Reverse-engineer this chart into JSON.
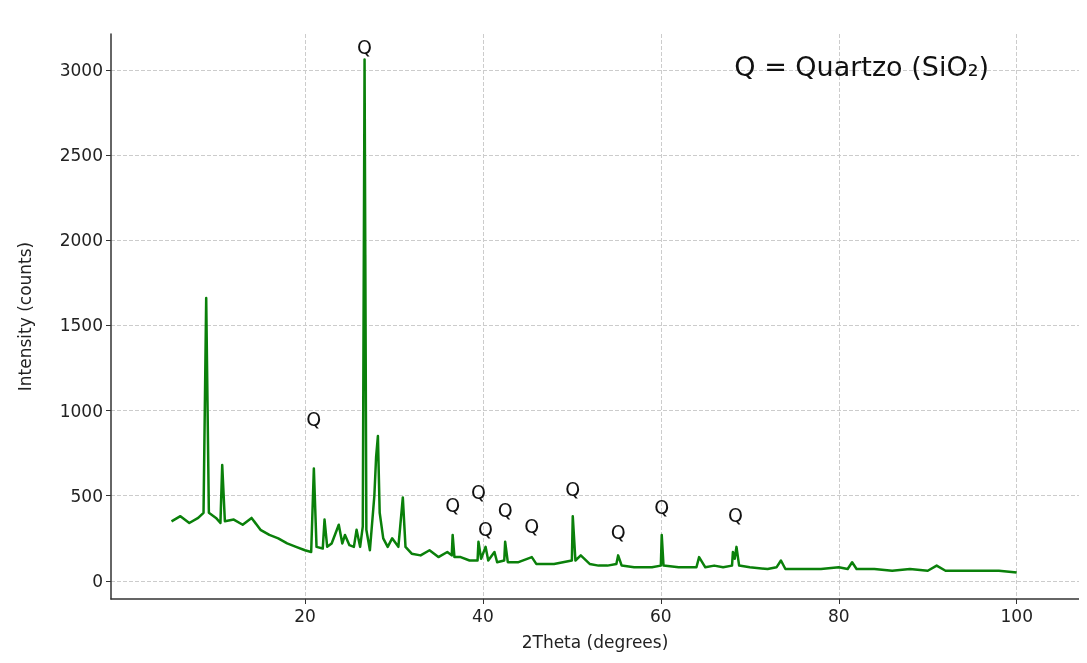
{
  "chart_data": {
    "type": "line",
    "xlabel": "2Theta (degrees)",
    "ylabel": "Intensity (counts)",
    "xlim": [
      -1.8,
      107
    ],
    "ylim": [
      -106,
      3210
    ],
    "xticks": [
      20,
      40,
      60,
      80,
      100
    ],
    "yticks": [
      0,
      500,
      1000,
      1500,
      2000,
      2500,
      3000
    ],
    "grid": true,
    "marker": "none",
    "line_style": "solid",
    "x": [
      5,
      6,
      7,
      8,
      8.6,
      8.9,
      9.2,
      10,
      10.5,
      10.7,
      11,
      12,
      13,
      14,
      15,
      16,
      17,
      18,
      19,
      20,
      20.7,
      21,
      21.3,
      22,
      22.2,
      22.5,
      23,
      23.8,
      24.2,
      24.5,
      25,
      25.5,
      25.8,
      26.2,
      26.5,
      26.7,
      26.9,
      27.3,
      27.8,
      28,
      28.2,
      28.4,
      28.8,
      29.3,
      29.8,
      30.5,
      31,
      31.3,
      32,
      33,
      34,
      35,
      36,
      36.5,
      36.6,
      36.8,
      37.5,
      38.5,
      39.4,
      39.5,
      39.8,
      40.3,
      40.6,
      41.3,
      41.6,
      42.4,
      42.5,
      42.8,
      44,
      45.5,
      46,
      47,
      48,
      49,
      50,
      50.1,
      50.4,
      51,
      52,
      53,
      54,
      55,
      55.2,
      55.6,
      57,
      58,
      59,
      60,
      60.1,
      60.3,
      62,
      63,
      64,
      64.3,
      65,
      66,
      67,
      68,
      68.1,
      68.3,
      68.5,
      68.8,
      70,
      72,
      73,
      73.5,
      74,
      76,
      78,
      80,
      81,
      81.5,
      82,
      84,
      86,
      88,
      90,
      91,
      92,
      95,
      98,
      100
    ],
    "series": [
      {
        "color": "#0a800a",
        "values": [
          350,
          380,
          340,
          370,
          400,
          1660,
          400,
          370,
          340,
          680,
          350,
          360,
          330,
          370,
          300,
          270,
          250,
          220,
          200,
          180,
          170,
          660,
          200,
          190,
          360,
          200,
          220,
          330,
          220,
          270,
          210,
          200,
          300,
          200,
          320,
          3060,
          300,
          180,
          500,
          730,
          850,
          400,
          250,
          200,
          250,
          200,
          490,
          200,
          160,
          150,
          180,
          140,
          170,
          150,
          270,
          140,
          140,
          120,
          120,
          230,
          130,
          200,
          120,
          170,
          110,
          120,
          230,
          110,
          110,
          140,
          100,
          100,
          100,
          110,
          120,
          380,
          120,
          150,
          100,
          90,
          90,
          100,
          150,
          90,
          80,
          80,
          80,
          90,
          270,
          90,
          80,
          80,
          80,
          140,
          80,
          90,
          80,
          90,
          170,
          130,
          200,
          90,
          80,
          70,
          80,
          120,
          70,
          70,
          70,
          80,
          70,
          110,
          70,
          70,
          60,
          70,
          60,
          90,
          60,
          60,
          60,
          50
        ]
      }
    ],
    "annotations": [
      "Q = Quartzo (SiO₂)",
      {
        "text": "Q",
        "x": 26.7,
        "y": 3060
      },
      {
        "text": "Q",
        "x": 21,
        "y": 660
      },
      {
        "text": "Q",
        "x": 36.6,
        "y": 270
      },
      {
        "text": "Q",
        "x": 39.5,
        "y": 230
      },
      {
        "text": "Q",
        "x": 40.3,
        "y": 200
      },
      {
        "text": "Q",
        "x": 42.5,
        "y": 230
      },
      {
        "text": "Q",
        "x": 45.5,
        "y": 140
      },
      {
        "text": "Q",
        "x": 50.1,
        "y": 380
      },
      {
        "text": "Q",
        "x": 55.2,
        "y": 150
      },
      {
        "text": "Q",
        "x": 60.1,
        "y": 270
      },
      {
        "text": "Q",
        "x": 68.4,
        "y": 200
      }
    ]
  }
}
